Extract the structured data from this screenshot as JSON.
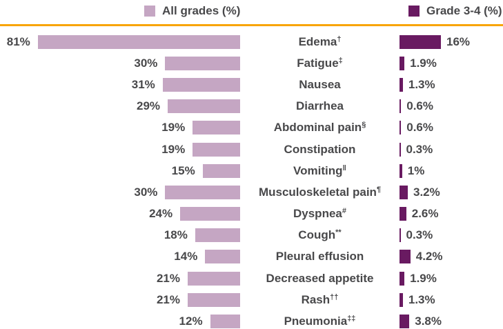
{
  "legend": {
    "all_grades": {
      "label": "All grades (%)",
      "color": "#C5A6C3"
    },
    "grade_3_4": {
      "label": "Grade 3-4 (%)",
      "color": "#691A61"
    }
  },
  "divider_color": "#F8A402",
  "text_color": "#48484A",
  "chart_data": {
    "type": "bar",
    "variant": "tornado",
    "title": "",
    "value_suffix": "%",
    "legend_position": "top",
    "grid": false,
    "series_names": [
      "All grades (%)",
      "Grade 3-4 (%)"
    ],
    "series_colors": [
      "#C5A6C3",
      "#691A61"
    ],
    "categories": [
      "Edema†",
      "Fatigue‡",
      "Nausea",
      "Diarrhea",
      "Abdominal pain§",
      "Constipation",
      "Vomiting‖",
      "Musculoskeletal pain¶",
      "Dyspnea#",
      "Cough**",
      "Pleural effusion",
      "Decreased appetite",
      "Rash††",
      "Pneumonia‡‡"
    ],
    "rows": [
      {
        "category": "Edema",
        "sup": "†",
        "all_grades": 81,
        "all_grades_label": "81%",
        "grade_3_4": 16,
        "grade_3_4_label": "16%"
      },
      {
        "category": "Fatigue",
        "sup": "‡",
        "all_grades": 30,
        "all_grades_label": "30%",
        "grade_3_4": 1.9,
        "grade_3_4_label": "1.9%"
      },
      {
        "category": "Nausea",
        "sup": "",
        "all_grades": 31,
        "all_grades_label": "31%",
        "grade_3_4": 1.3,
        "grade_3_4_label": "1.3%"
      },
      {
        "category": "Diarrhea",
        "sup": "",
        "all_grades": 29,
        "all_grades_label": "29%",
        "grade_3_4": 0.6,
        "grade_3_4_label": "0.6%"
      },
      {
        "category": "Abdominal pain",
        "sup": "§",
        "all_grades": 19,
        "all_grades_label": "19%",
        "grade_3_4": 0.6,
        "grade_3_4_label": "0.6%"
      },
      {
        "category": "Constipation",
        "sup": "",
        "all_grades": 19,
        "all_grades_label": "19%",
        "grade_3_4": 0.3,
        "grade_3_4_label": "0.3%"
      },
      {
        "category": "Vomiting",
        "sup": "‖",
        "all_grades": 15,
        "all_grades_label": "15%",
        "grade_3_4": 1,
        "grade_3_4_label": "1%"
      },
      {
        "category": "Musculoskeletal pain",
        "sup": "¶",
        "all_grades": 30,
        "all_grades_label": "30%",
        "grade_3_4": 3.2,
        "grade_3_4_label": "3.2%"
      },
      {
        "category": "Dyspnea",
        "sup": "#",
        "all_grades": 24,
        "all_grades_label": "24%",
        "grade_3_4": 2.6,
        "grade_3_4_label": "2.6%"
      },
      {
        "category": "Cough",
        "sup": "**",
        "all_grades": 18,
        "all_grades_label": "18%",
        "grade_3_4": 0.3,
        "grade_3_4_label": "0.3%"
      },
      {
        "category": "Pleural effusion",
        "sup": "",
        "all_grades": 14,
        "all_grades_label": "14%",
        "grade_3_4": 4.2,
        "grade_3_4_label": "4.2%"
      },
      {
        "category": "Decreased appetite",
        "sup": "",
        "all_grades": 21,
        "all_grades_label": "21%",
        "grade_3_4": 1.9,
        "grade_3_4_label": "1.9%"
      },
      {
        "category": "Rash",
        "sup": "††",
        "all_grades": 21,
        "all_grades_label": "21%",
        "grade_3_4": 1.3,
        "grade_3_4_label": "1.3%"
      },
      {
        "category": "Pneumonia",
        "sup": "‡‡",
        "all_grades": 12,
        "all_grades_label": "12%",
        "grade_3_4": 3.8,
        "grade_3_4_label": "3.8%"
      }
    ]
  }
}
